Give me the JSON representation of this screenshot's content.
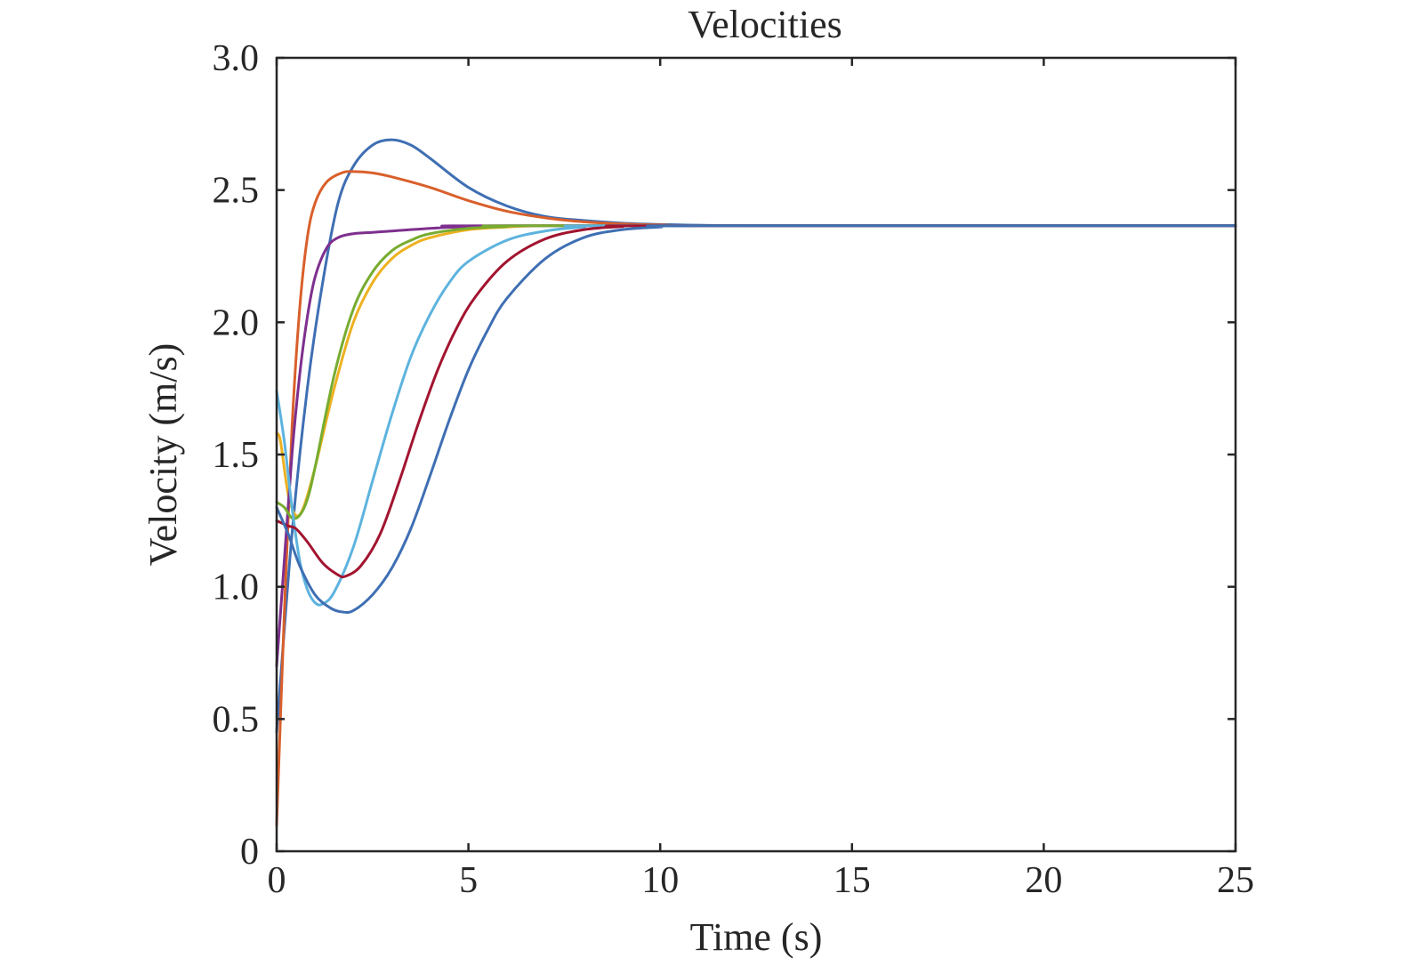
{
  "chart_data": {
    "type": "line",
    "title": "Velocities",
    "xlabel": "Time (s)",
    "ylabel": "Velocity (m/s)",
    "xlim": [
      0,
      25
    ],
    "ylim": [
      0,
      3
    ],
    "xticks": [
      0,
      5,
      10,
      15,
      20,
      25
    ],
    "xtick_labels": [
      "0",
      "5",
      "10",
      "15",
      "20",
      "25"
    ],
    "yticks": [
      0,
      0.5,
      1,
      1.5,
      2,
      2.5,
      3
    ],
    "ytick_labels": [
      "0",
      "0.5",
      "1.0",
      "1.5",
      "2.0",
      "2.5",
      "3.0"
    ],
    "grid": false,
    "legend": "none",
    "series": [
      {
        "color": "#3f6fb3",
        "points": [
          [
            0,
            0.45
          ],
          [
            0.4,
            1.2
          ],
          [
            0.8,
            1.75
          ],
          [
            1.2,
            2.15
          ],
          [
            1.6,
            2.45
          ],
          [
            2.0,
            2.59
          ],
          [
            2.5,
            2.67
          ],
          [
            3.0,
            2.69
          ],
          [
            3.5,
            2.67
          ],
          [
            4.0,
            2.62
          ],
          [
            5.0,
            2.51
          ],
          [
            6.0,
            2.44
          ],
          [
            7.0,
            2.4
          ],
          [
            8.0,
            2.385
          ],
          [
            9.0,
            2.375
          ],
          [
            10.0,
            2.37
          ],
          [
            12.0,
            2.365
          ],
          [
            15.0,
            2.365
          ],
          [
            25.0,
            2.365
          ]
        ]
      },
      {
        "color": "#d95f2b",
        "points": [
          [
            0,
            0.1
          ],
          [
            0.2,
            0.9
          ],
          [
            0.4,
            1.6
          ],
          [
            0.6,
            2.05
          ],
          [
            0.8,
            2.32
          ],
          [
            1.0,
            2.45
          ],
          [
            1.3,
            2.53
          ],
          [
            1.7,
            2.565
          ],
          [
            2.0,
            2.57
          ],
          [
            2.5,
            2.565
          ],
          [
            3.0,
            2.55
          ],
          [
            4.0,
            2.51
          ],
          [
            5.0,
            2.46
          ],
          [
            6.0,
            2.42
          ],
          [
            7.0,
            2.395
          ],
          [
            8.0,
            2.38
          ],
          [
            9.0,
            2.372
          ],
          [
            10.0,
            2.368
          ],
          [
            12.0,
            2.365
          ],
          [
            25.0,
            2.365
          ]
        ]
      },
      {
        "color": "#edb120",
        "points": [
          [
            0,
            1.58
          ],
          [
            0.1,
            1.55
          ],
          [
            0.3,
            1.35
          ],
          [
            0.5,
            1.27
          ],
          [
            0.7,
            1.3
          ],
          [
            1.0,
            1.45
          ],
          [
            1.5,
            1.75
          ],
          [
            2.0,
            2.0
          ],
          [
            2.5,
            2.15
          ],
          [
            3.0,
            2.24
          ],
          [
            3.5,
            2.29
          ],
          [
            4.0,
            2.32
          ],
          [
            5.0,
            2.35
          ],
          [
            6.0,
            2.36
          ],
          [
            7.0,
            2.365
          ],
          [
            10.0,
            2.365
          ],
          [
            25.0,
            2.365
          ]
        ]
      },
      {
        "color": "#7e2f8e",
        "points": [
          [
            0,
            0.7
          ],
          [
            0.2,
            1.1
          ],
          [
            0.4,
            1.5
          ],
          [
            0.6,
            1.8
          ],
          [
            0.8,
            2.02
          ],
          [
            1.0,
            2.17
          ],
          [
            1.3,
            2.28
          ],
          [
            1.6,
            2.32
          ],
          [
            2.0,
            2.335
          ],
          [
            2.5,
            2.34
          ],
          [
            3.0,
            2.345
          ],
          [
            4.0,
            2.355
          ],
          [
            5.0,
            2.362
          ],
          [
            6.0,
            2.365
          ],
          [
            25.0,
            2.365
          ]
        ]
      },
      {
        "color": "#77ac30",
        "points": [
          [
            0,
            1.32
          ],
          [
            0.2,
            1.3
          ],
          [
            0.4,
            1.26
          ],
          [
            0.6,
            1.27
          ],
          [
            0.8,
            1.33
          ],
          [
            1.0,
            1.45
          ],
          [
            1.5,
            1.8
          ],
          [
            2.0,
            2.05
          ],
          [
            2.5,
            2.19
          ],
          [
            3.0,
            2.27
          ],
          [
            3.5,
            2.31
          ],
          [
            4.0,
            2.335
          ],
          [
            5.0,
            2.355
          ],
          [
            6.0,
            2.362
          ],
          [
            7.0,
            2.365
          ],
          [
            25.0,
            2.365
          ]
        ]
      },
      {
        "color": "#5db3de",
        "points": [
          [
            0,
            1.74
          ],
          [
            0.2,
            1.55
          ],
          [
            0.4,
            1.3
          ],
          [
            0.6,
            1.1
          ],
          [
            0.8,
            0.99
          ],
          [
            1.0,
            0.94
          ],
          [
            1.2,
            0.935
          ],
          [
            1.5,
            0.98
          ],
          [
            2.0,
            1.15
          ],
          [
            2.5,
            1.4
          ],
          [
            3.0,
            1.65
          ],
          [
            3.5,
            1.87
          ],
          [
            4.0,
            2.03
          ],
          [
            4.5,
            2.15
          ],
          [
            5.0,
            2.23
          ],
          [
            6.0,
            2.31
          ],
          [
            7.0,
            2.345
          ],
          [
            8.0,
            2.36
          ],
          [
            9.0,
            2.365
          ],
          [
            25.0,
            2.365
          ]
        ]
      },
      {
        "color": "#a2142f",
        "points": [
          [
            0,
            1.25
          ],
          [
            0.3,
            1.23
          ],
          [
            0.5,
            1.22
          ],
          [
            0.8,
            1.17
          ],
          [
            1.2,
            1.09
          ],
          [
            1.6,
            1.045
          ],
          [
            1.8,
            1.04
          ],
          [
            2.2,
            1.08
          ],
          [
            2.7,
            1.2
          ],
          [
            3.2,
            1.4
          ],
          [
            3.7,
            1.62
          ],
          [
            4.2,
            1.82
          ],
          [
            4.7,
            1.98
          ],
          [
            5.2,
            2.1
          ],
          [
            6.0,
            2.23
          ],
          [
            7.0,
            2.315
          ],
          [
            8.0,
            2.35
          ],
          [
            9.0,
            2.362
          ],
          [
            10.0,
            2.365
          ],
          [
            25.0,
            2.365
          ]
        ]
      },
      {
        "color": "#3f6fb3",
        "points": [
          [
            0,
            1.3
          ],
          [
            0.3,
            1.2
          ],
          [
            0.6,
            1.08
          ],
          [
            1.0,
            0.97
          ],
          [
            1.4,
            0.92
          ],
          [
            1.7,
            0.905
          ],
          [
            2.0,
            0.91
          ],
          [
            2.5,
            0.97
          ],
          [
            3.0,
            1.07
          ],
          [
            3.5,
            1.22
          ],
          [
            4.0,
            1.42
          ],
          [
            4.5,
            1.63
          ],
          [
            5.0,
            1.82
          ],
          [
            5.5,
            1.97
          ],
          [
            6.0,
            2.09
          ],
          [
            7.0,
            2.24
          ],
          [
            8.0,
            2.32
          ],
          [
            9.0,
            2.35
          ],
          [
            10.0,
            2.36
          ],
          [
            11.0,
            2.365
          ],
          [
            25.0,
            2.365
          ]
        ]
      }
    ]
  }
}
